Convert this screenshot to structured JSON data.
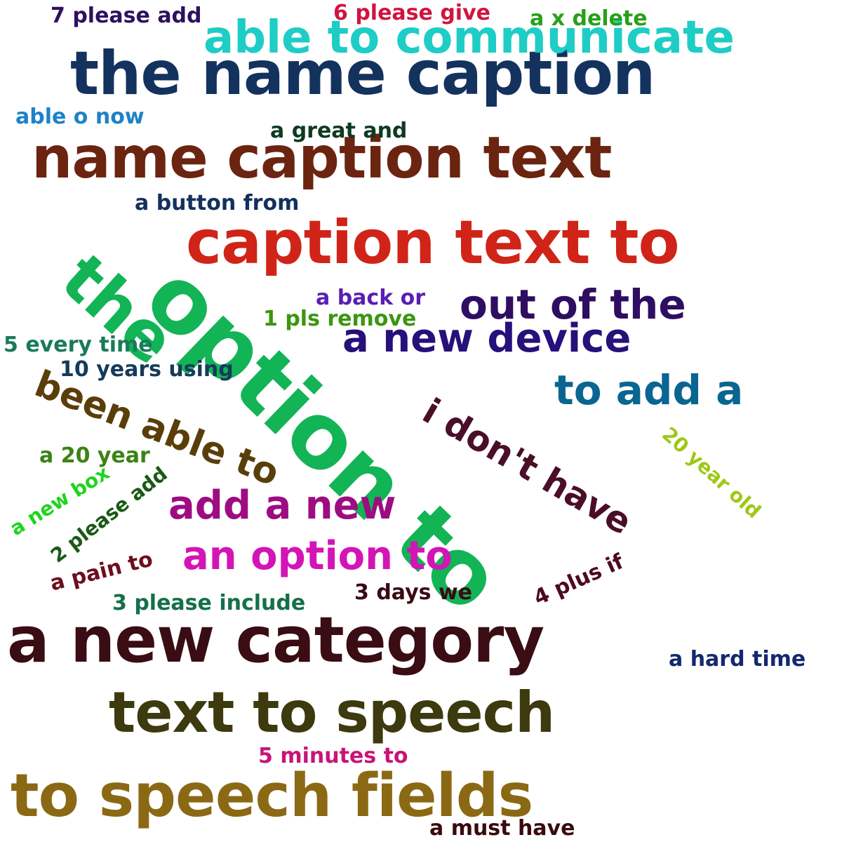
{
  "words": [
    {
      "text": "to speech fields",
      "color": "#8b6914"
    },
    {
      "text": "a new category",
      "color": "#3a0c14"
    },
    {
      "text": "caption text to",
      "color": "#d02418"
    },
    {
      "text": "name caption text",
      "color": "#6b2410"
    },
    {
      "text": "the name caption",
      "color": "#14325e"
    },
    {
      "text": "text to speech",
      "color": "#3c3a0e"
    },
    {
      "text": "option to",
      "color": "#12b455"
    },
    {
      "text": "the",
      "color": "#12b455"
    },
    {
      "text": "able to communicate",
      "color": "#1ecdc5"
    },
    {
      "text": "out of the",
      "color": "#2e0d62"
    },
    {
      "text": "a new device",
      "color": "#26107a"
    },
    {
      "text": "to add a",
      "color": "#0a6591"
    },
    {
      "text": "i don't have",
      "color": "#4a0e28"
    },
    {
      "text": "been able to",
      "color": "#5a3e0a"
    },
    {
      "text": "add a new",
      "color": "#9e0c82"
    },
    {
      "text": "an option to",
      "color": "#d414b6"
    },
    {
      "text": "7 please add",
      "color": "#2e1060"
    },
    {
      "text": "6 please give",
      "color": "#d01440"
    },
    {
      "text": "a x delete",
      "color": "#28a018"
    },
    {
      "text": "able o now",
      "color": "#1e82c8"
    },
    {
      "text": "a great and",
      "color": "#0e3a22"
    },
    {
      "text": "a button from",
      "color": "#14305e"
    },
    {
      "text": "a back or",
      "color": "#5a1eb4"
    },
    {
      "text": "1 pls remove",
      "color": "#3c9610"
    },
    {
      "text": "5 every time",
      "color": "#1a7a5a"
    },
    {
      "text": "10 years using",
      "color": "#163a5a"
    },
    {
      "text": "a 20 year",
      "color": "#3c8214"
    },
    {
      "text": "20 year old",
      "color": "#9ec814"
    },
    {
      "text": "a new box",
      "color": "#1ed41e"
    },
    {
      "text": "2 please add",
      "color": "#1a5a14"
    },
    {
      "text": "a pain to",
      "color": "#6e0e1e"
    },
    {
      "text": "4 plus if",
      "color": "#4e0a1e"
    },
    {
      "text": "3 days we",
      "color": "#3a0a14"
    },
    {
      "text": "3 please include",
      "color": "#14704a"
    },
    {
      "text": "a hard time",
      "color": "#14286e"
    },
    {
      "text": "5 minutes to",
      "color": "#c81478"
    },
    {
      "text": "a must have",
      "color": "#3a0a0e"
    }
  ]
}
